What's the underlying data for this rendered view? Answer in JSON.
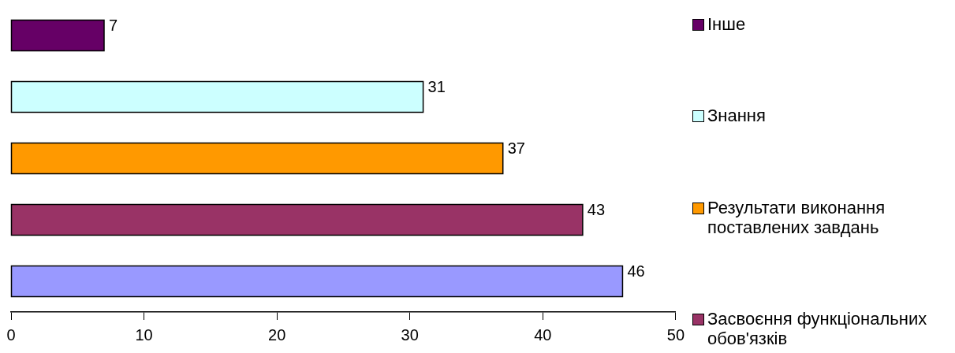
{
  "chart_data": {
    "type": "bar",
    "orientation": "horizontal",
    "stacked": true,
    "categories": [
      null,
      null,
      null,
      null,
      null
    ],
    "series": [
      {
        "name": "Інше",
        "color": "#660066",
        "values": [
          7,
          null,
          null,
          null,
          null
        ]
      },
      {
        "name": "Знання",
        "color": "#ccffff",
        "values": [
          null,
          31,
          null,
          null,
          null
        ]
      },
      {
        "name": "Результати виконання поставлених завдань",
        "color": "#ff9900",
        "values": [
          null,
          null,
          37,
          null,
          null
        ]
      },
      {
        "name": "Засвоєння функціональних обов'язків",
        "color": "#993366",
        "values": [
          null,
          null,
          null,
          43,
          null
        ]
      },
      {
        "color": "#9999ff",
        "values": [
          null,
          null,
          null,
          null,
          46
        ]
      }
    ],
    "xlim": [
      0,
      50
    ],
    "xticks": [
      0,
      10,
      20,
      30,
      40,
      50
    ],
    "grid": false,
    "tick_labels": "x",
    "legend": "right",
    "data_labels": true
  }
}
